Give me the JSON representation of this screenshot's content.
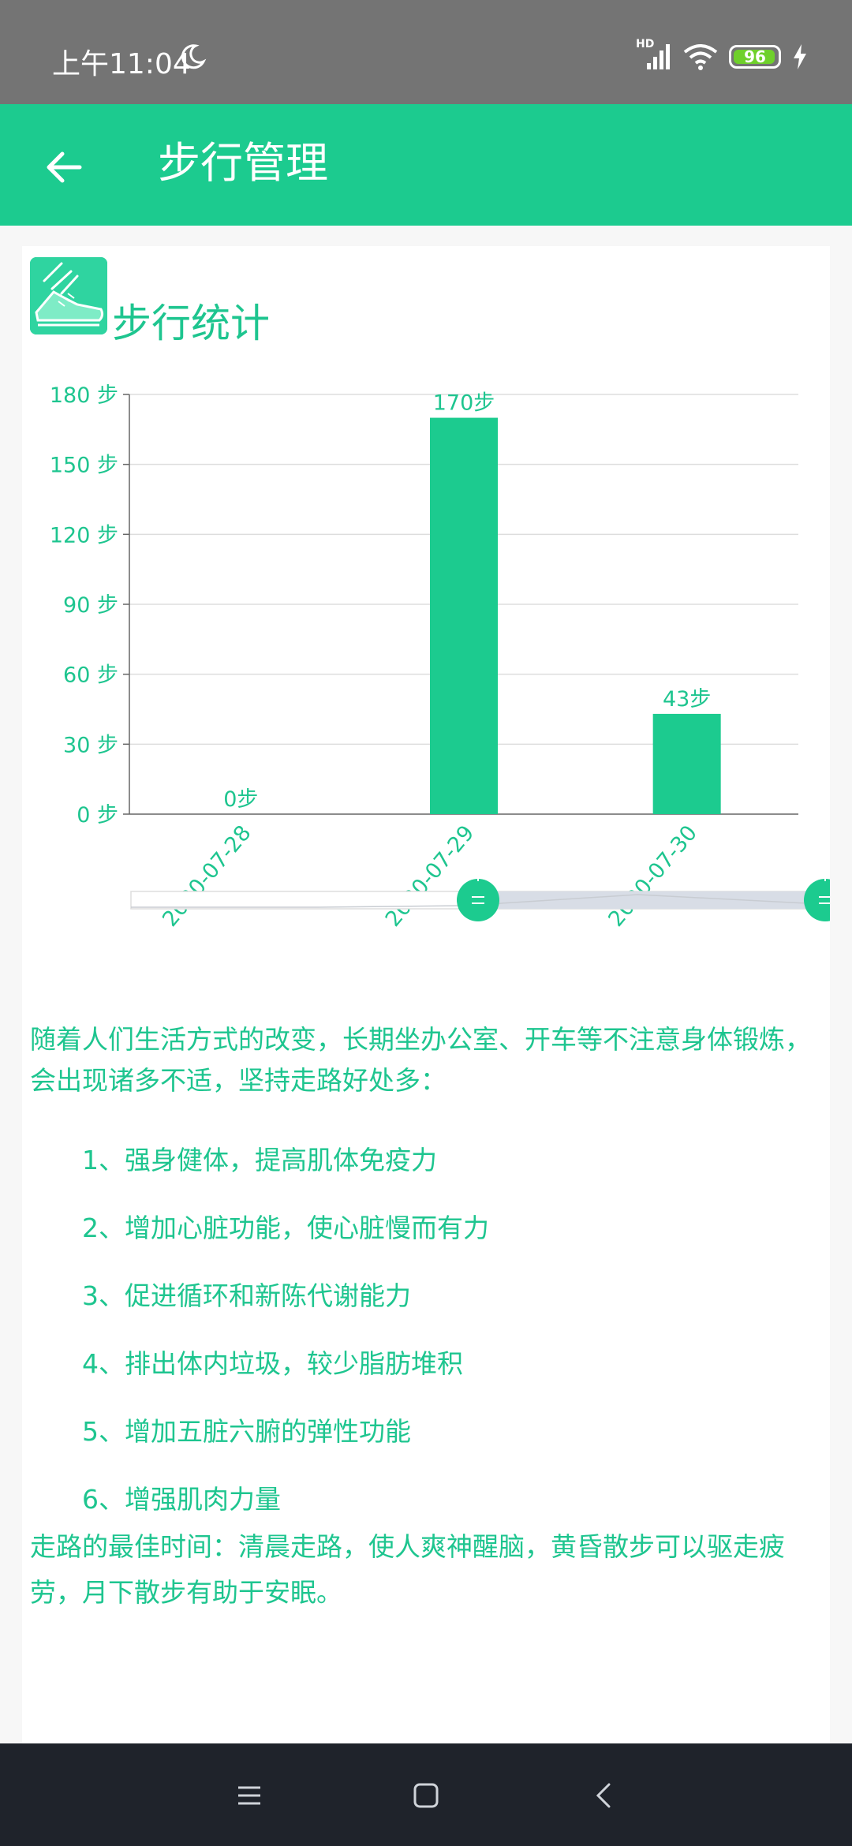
{
  "status_bar": {
    "time": "上午11:04",
    "network": "HD",
    "battery": "96",
    "battery_level": 0.96
  },
  "app_bar": {
    "title": "步行管理"
  },
  "card": {
    "title": "步行统计"
  },
  "chart_data": {
    "type": "bar",
    "categories": [
      "2020-07-28",
      "2020-07-29",
      "2020-07-30"
    ],
    "values": [
      0,
      170,
      43
    ],
    "data_labels": [
      "0步",
      "170步",
      "43步"
    ],
    "ylim": [
      0,
      180
    ],
    "yticks": [
      0,
      30,
      60,
      90,
      120,
      150,
      180
    ],
    "ytick_labels": [
      "0 步",
      "30 步",
      "60 步",
      "90 步",
      "120 步",
      "150 步",
      "180 步"
    ],
    "grid": true,
    "bar_color": "#1ccb8f",
    "zoom_range": [
      0.5,
      1.0
    ]
  },
  "content": {
    "intro": "随着人们生活方式的改变，长期坐办公室、开车等不注意身体锻炼，会出现诸多不适，坚持走路好处多：",
    "benefits": [
      "1、强身健体，提高肌体免疫力",
      "2、增加心脏功能，使心脏慢而有力",
      "3、促进循环和新陈代谢能力",
      "4、排出体内垃圾，较少脂肪堆积",
      "5、增加五脏六腑的弹性功能",
      "6、增强肌肉力量"
    ],
    "tip": "走路的最佳时间：清晨走路，使人爽神醒脑，黄昏散步可以驱走疲劳，月下散步有助于安眠。"
  },
  "colors": {
    "accent": "#1ccb8f",
    "text": "#1ec58f"
  }
}
